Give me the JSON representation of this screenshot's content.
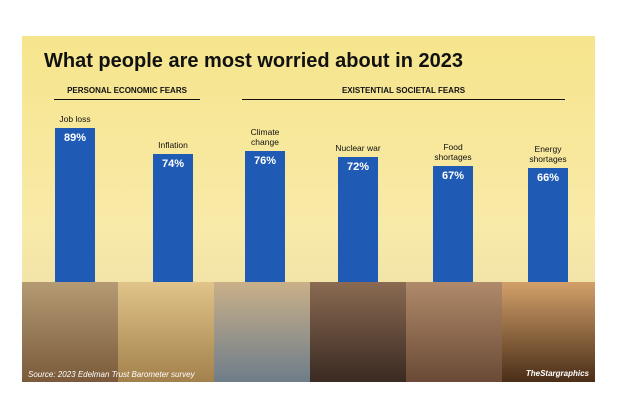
{
  "chart_data": {
    "type": "bar",
    "title": "What people are most worried about in 2023",
    "groups": [
      "PERSONAL ECONOMIC FEARS",
      "EXISTENTIAL SOCIETAL FEARS"
    ],
    "categories": [
      "Job loss",
      "Inflation",
      "Climate change",
      "Nuclear war",
      "Food shortages",
      "Energy shortages"
    ],
    "values": [
      89,
      74,
      76,
      72,
      67,
      66
    ],
    "value_labels": [
      "89%",
      "74%",
      "76%",
      "72%",
      "67%",
      "66%"
    ],
    "color": "#1f5bb5",
    "source": "Source: 2023 Edelman Trust Barometer survey",
    "credit": "TheStargraphics"
  }
}
